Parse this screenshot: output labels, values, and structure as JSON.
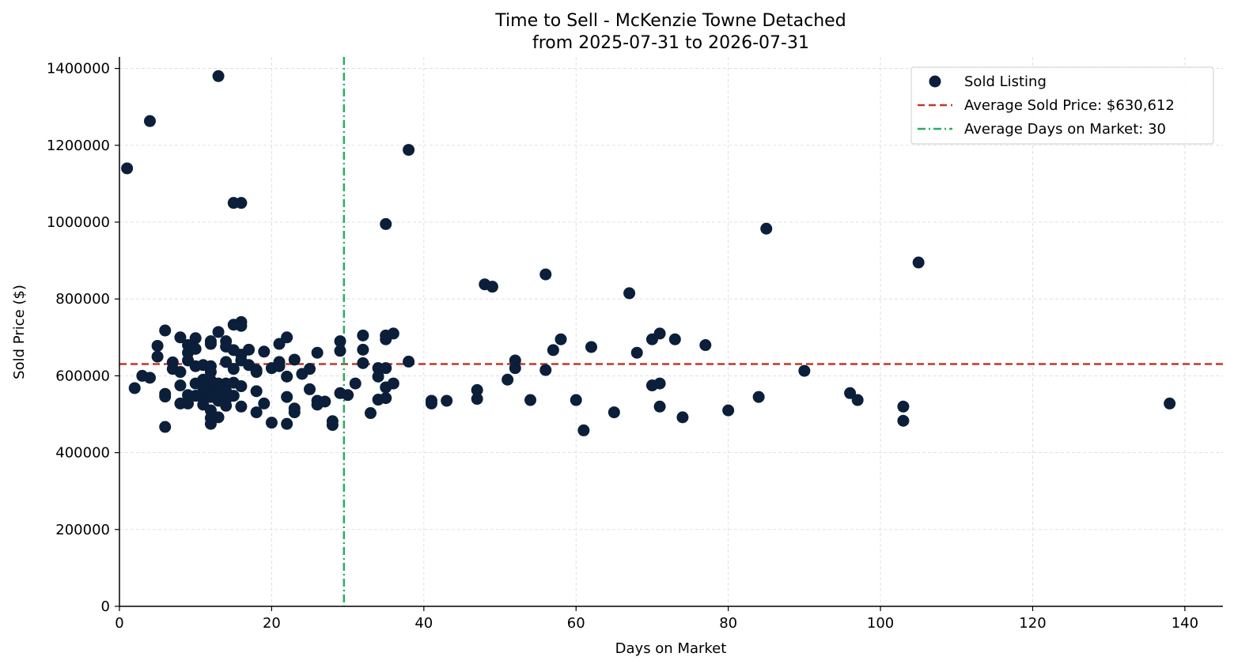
{
  "chart_data": {
    "type": "scatter",
    "title": "Time to Sell - McKenzie Towne Detached",
    "subtitle": "from 2025-07-31 to 2026-07-31",
    "xlabel": "Days on Market",
    "ylabel": "Sold Price ($)",
    "xlim": [
      0,
      145
    ],
    "ylim": [
      0,
      1430000
    ],
    "x_ticks": [
      0,
      20,
      40,
      60,
      80,
      100,
      120,
      140
    ],
    "y_ticks": [
      0,
      200000,
      400000,
      600000,
      800000,
      1000000,
      1200000,
      1400000
    ],
    "grid": true,
    "legend_position": "top-right",
    "colors": {
      "points": "#0b1f3a",
      "avg_price": "#c0392b",
      "avg_days": "#27ae60"
    },
    "series": [
      {
        "name": "Sold Listing",
        "points": [
          [
            1,
            1140000
          ],
          [
            2,
            568000
          ],
          [
            3,
            600000
          ],
          [
            4,
            595000
          ],
          [
            4,
            1263000
          ],
          [
            5,
            650000
          ],
          [
            5,
            678000
          ],
          [
            6,
            718000
          ],
          [
            6,
            553000
          ],
          [
            6,
            546000
          ],
          [
            6,
            467000
          ],
          [
            7,
            635000
          ],
          [
            7,
            618000
          ],
          [
            8,
            700000
          ],
          [
            8,
            610000
          ],
          [
            8,
            575000
          ],
          [
            8,
            528000
          ],
          [
            9,
            680000
          ],
          [
            9,
            660000
          ],
          [
            9,
            640000
          ],
          [
            9,
            550000
          ],
          [
            9,
            528000
          ],
          [
            10,
            698000
          ],
          [
            10,
            670000
          ],
          [
            10,
            625000
          ],
          [
            10,
            580000
          ],
          [
            10,
            548000
          ],
          [
            11,
            628000
          ],
          [
            11,
            590000
          ],
          [
            11,
            578000
          ],
          [
            11,
            560000
          ],
          [
            11,
            540000
          ],
          [
            11,
            525000
          ],
          [
            12,
            690000
          ],
          [
            12,
            683000
          ],
          [
            12,
            625000
          ],
          [
            12,
            610000
          ],
          [
            12,
            588000
          ],
          [
            12,
            560000
          ],
          [
            12,
            545000
          ],
          [
            12,
            510000
          ],
          [
            12,
            490000
          ],
          [
            12,
            475000
          ],
          [
            13,
            1380000
          ],
          [
            13,
            714000
          ],
          [
            13,
            580000
          ],
          [
            13,
            560000
          ],
          [
            13,
            535000
          ],
          [
            13,
            492000
          ],
          [
            14,
            690000
          ],
          [
            14,
            676000
          ],
          [
            14,
            636000
          ],
          [
            14,
            580000
          ],
          [
            14,
            560000
          ],
          [
            14,
            538000
          ],
          [
            14,
            522000
          ],
          [
            15,
            1050000
          ],
          [
            15,
            733000
          ],
          [
            15,
            667000
          ],
          [
            15,
            618000
          ],
          [
            15,
            582000
          ],
          [
            15,
            548000
          ],
          [
            16,
            1050000
          ],
          [
            16,
            740000
          ],
          [
            16,
            730000
          ],
          [
            16,
            655000
          ],
          [
            16,
            640000
          ],
          [
            16,
            573000
          ],
          [
            16,
            520000
          ],
          [
            17,
            668000
          ],
          [
            17,
            628000
          ],
          [
            18,
            615000
          ],
          [
            18,
            610000
          ],
          [
            18,
            560000
          ],
          [
            18,
            505000
          ],
          [
            19,
            663000
          ],
          [
            19,
            528000
          ],
          [
            20,
            620000
          ],
          [
            20,
            478000
          ],
          [
            21,
            683000
          ],
          [
            21,
            636000
          ],
          [
            21,
            625000
          ],
          [
            22,
            700000
          ],
          [
            22,
            598000
          ],
          [
            22,
            545000
          ],
          [
            22,
            475000
          ],
          [
            23,
            642000
          ],
          [
            23,
            515000
          ],
          [
            23,
            505000
          ],
          [
            24,
            605000
          ],
          [
            25,
            618000
          ],
          [
            25,
            565000
          ],
          [
            26,
            660000
          ],
          [
            26,
            535000
          ],
          [
            26,
            525000
          ],
          [
            27,
            533000
          ],
          [
            28,
            482000
          ],
          [
            28,
            472000
          ],
          [
            29,
            690000
          ],
          [
            29,
            665000
          ],
          [
            29,
            555000
          ],
          [
            30,
            550000
          ],
          [
            31,
            580000
          ],
          [
            32,
            705000
          ],
          [
            32,
            668000
          ],
          [
            32,
            633000
          ],
          [
            33,
            503000
          ],
          [
            34,
            620000
          ],
          [
            34,
            598000
          ],
          [
            34,
            538000
          ],
          [
            35,
            995000
          ],
          [
            35,
            705000
          ],
          [
            35,
            695000
          ],
          [
            35,
            620000
          ],
          [
            35,
            570000
          ],
          [
            35,
            542000
          ],
          [
            36,
            710000
          ],
          [
            36,
            580000
          ],
          [
            38,
            1188000
          ],
          [
            38,
            637000
          ],
          [
            41,
            535000
          ],
          [
            41,
            528000
          ],
          [
            43,
            535000
          ],
          [
            47,
            563000
          ],
          [
            47,
            540000
          ],
          [
            48,
            838000
          ],
          [
            49,
            832000
          ],
          [
            51,
            590000
          ],
          [
            52,
            640000
          ],
          [
            52,
            620000
          ],
          [
            54,
            537000
          ],
          [
            56,
            864000
          ],
          [
            56,
            615000
          ],
          [
            57,
            667000
          ],
          [
            58,
            695000
          ],
          [
            60,
            537000
          ],
          [
            61,
            458000
          ],
          [
            62,
            675000
          ],
          [
            65,
            505000
          ],
          [
            67,
            815000
          ],
          [
            68,
            660000
          ],
          [
            70,
            695000
          ],
          [
            70,
            575000
          ],
          [
            71,
            710000
          ],
          [
            71,
            580000
          ],
          [
            71,
            520000
          ],
          [
            73,
            695000
          ],
          [
            74,
            492000
          ],
          [
            77,
            680000
          ],
          [
            80,
            510000
          ],
          [
            84,
            545000
          ],
          [
            85,
            983000
          ],
          [
            90,
            613000
          ],
          [
            96,
            555000
          ],
          [
            97,
            537000
          ],
          [
            103,
            520000
          ],
          [
            103,
            483000
          ],
          [
            105,
            895000
          ],
          [
            138,
            528000
          ]
        ]
      }
    ],
    "reference_lines": [
      {
        "name": "Average Sold Price: $630,612",
        "orientation": "horizontal",
        "value": 630612,
        "style": "dashed"
      },
      {
        "name": "Average Days on Market: 30",
        "orientation": "vertical",
        "value": 29.5,
        "style": "dashdot"
      }
    ]
  }
}
